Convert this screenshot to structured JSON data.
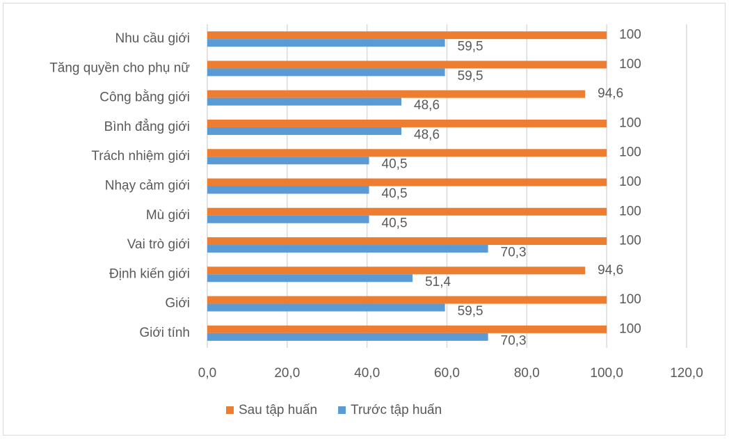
{
  "chart_data": {
    "type": "bar",
    "orientation": "horizontal",
    "categories": [
      "Nhu cầu giới",
      "Tăng quyền cho phụ nữ",
      "Công bằng giới",
      "Bình đẳng giới",
      "Trách nhiệm giới",
      "Nhạy cảm giới",
      "Mù giới",
      "Vai trò giới",
      "Định kiến giới",
      "Giới",
      "Giới tính"
    ],
    "series": [
      {
        "name": "Sau tập huấn",
        "color": "#ed7d31",
        "values": [
          100,
          100,
          94.6,
          100,
          100,
          100,
          100,
          100,
          94.6,
          100,
          100
        ],
        "value_labels": [
          "100",
          "100",
          "94,6",
          "100",
          "100",
          "100",
          "100",
          "100",
          "94,6",
          "100",
          "100"
        ]
      },
      {
        "name": "Trước tập huấn",
        "color": "#5b9bd5",
        "values": [
          59.5,
          59.5,
          48.6,
          48.6,
          40.5,
          40.5,
          40.5,
          70.3,
          51.4,
          59.5,
          70.3
        ],
        "value_labels": [
          "59,5",
          "59,5",
          "48,6",
          "48,6",
          "40,5",
          "40,5",
          "40,5",
          "70,3",
          "51,4",
          "59,5",
          "70,3"
        ]
      }
    ],
    "xlim": [
      0,
      120
    ],
    "xticks": [
      {
        "value": 0,
        "label": "0,0"
      },
      {
        "value": 20,
        "label": "20,0"
      },
      {
        "value": 40,
        "label": "40,0"
      },
      {
        "value": 60,
        "label": "60,0"
      },
      {
        "value": 80,
        "label": "80,0"
      },
      {
        "value": 100,
        "label": "100,0"
      },
      {
        "value": 120,
        "label": "120,0"
      }
    ],
    "grid": true,
    "legend": "bottom"
  }
}
